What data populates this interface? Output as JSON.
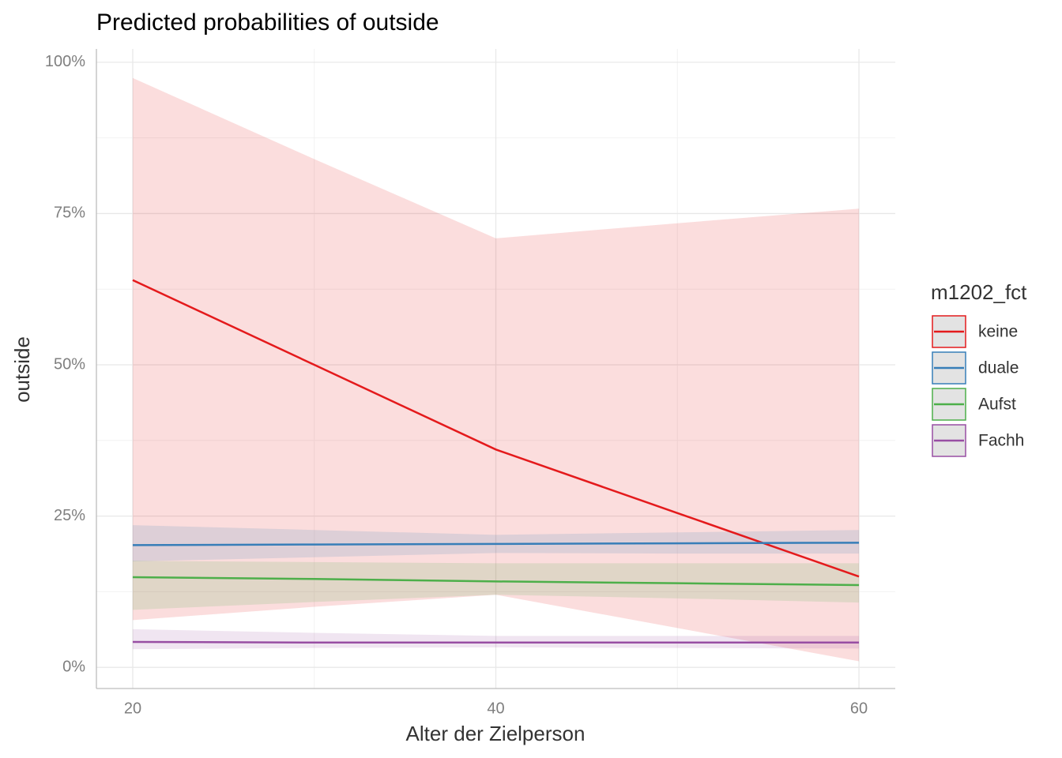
{
  "chart_data": {
    "type": "line",
    "title": "Predicted probabilities of outside",
    "x_label": "Alter der Zielperson",
    "y_label": "outside",
    "x": [
      20,
      30,
      40,
      50,
      60
    ],
    "xlim": [
      18,
      62
    ],
    "xticks": [
      20,
      40,
      60
    ],
    "ylim": [
      -3.5,
      102.2
    ],
    "yticks": [
      {
        "value": 0,
        "label": "0%"
      },
      {
        "value": 25,
        "label": "25%"
      },
      {
        "value": 50,
        "label": "50%"
      },
      {
        "value": 75,
        "label": "75%"
      },
      {
        "value": 100,
        "label": "100%"
      }
    ],
    "grid": true,
    "legend_title": "m1202_fct",
    "legend_position": "right",
    "series": [
      {
        "name": "keine",
        "color": "#e41a1c",
        "values": [
          64,
          50,
          36,
          25.5,
          15
        ],
        "upper": [
          97.4,
          84,
          70.9,
          73.4,
          75.8
        ],
        "lower": [
          7.8,
          10,
          12,
          6.5,
          1
        ]
      },
      {
        "name": "duale",
        "color": "#377eb8",
        "values": [
          20.2,
          20.3,
          20.4,
          20.5,
          20.6
        ],
        "upper": [
          23.5,
          22.7,
          21.9,
          22.3,
          22.7
        ],
        "lower": [
          17.5,
          18.2,
          18.9,
          18.8,
          18.8
        ]
      },
      {
        "name": "Aufst",
        "color": "#4daf4a",
        "values": [
          14.9,
          14.6,
          14.2,
          13.9,
          13.6
        ],
        "upper": [
          17.6,
          17.4,
          17.2,
          17.2,
          17.2
        ],
        "lower": [
          9.5,
          10.8,
          12,
          11.4,
          10.7
        ]
      },
      {
        "name": "Fachh",
        "color": "#984ea3",
        "values": [
          4.2,
          4.1,
          4.1,
          4.1,
          4.1
        ],
        "upper": [
          6.3,
          5.7,
          5.2,
          5.2,
          5.2
        ],
        "lower": [
          3,
          3.2,
          3.3,
          3.2,
          3.1
        ]
      }
    ]
  }
}
